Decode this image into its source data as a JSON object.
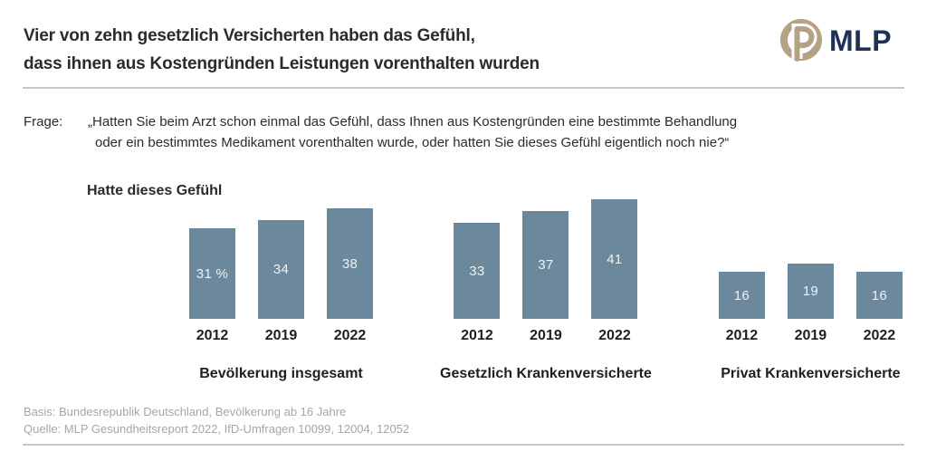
{
  "header": {
    "title_line1": "Vier von zehn gesetzlich Versicherten haben das Gefühl,",
    "title_line2": "dass ihnen aus Kostengründen Leistungen vorenthalten wurden",
    "logo_text": "MLP"
  },
  "question": {
    "label": "Frage:",
    "line1": "„Hatten Sie beim Arzt schon einmal das Gefühl, dass Ihnen aus Kostengründen eine bestimmte Behandlung",
    "line2": "oder ein bestimmtes Medikament vorenthalten wurde, oder hatten Sie dieses Gefühl eigentlich noch nie?“"
  },
  "chart_data": {
    "type": "bar",
    "title": "Hatte dieses Gefühl",
    "unit": "%",
    "ylim": [
      0,
      41
    ],
    "grid": false,
    "legend": "none",
    "categories": [
      "2012",
      "2019",
      "2022"
    ],
    "groups": [
      {
        "label": "Bevölkerung insgesamt",
        "values": [
          31,
          34,
          38
        ],
        "display": [
          "31 %",
          "34",
          "38"
        ]
      },
      {
        "label": "Gesetzlich Krankenversicherte",
        "values": [
          33,
          37,
          41
        ],
        "display": [
          "33",
          "37",
          "41"
        ]
      },
      {
        "label": "Privat Krankenversicherte",
        "values": [
          16,
          19,
          16
        ],
        "display": [
          "16",
          "19",
          "16"
        ]
      }
    ]
  },
  "footer": {
    "basis": "Basis: Bundesrepublik Deutschland, Bevölkerung ab 16 Jahre",
    "quelle": "Quelle: MLP Gesundheitsreport 2022, IfD-Umfragen 10099, 12004, 12052"
  },
  "colors": {
    "bar": "#6b889c",
    "bar_label": "#eef2f4",
    "logo_ring": "#b3a284",
    "logo_navy": "#1d3156",
    "divider": "#c6c6c6",
    "footer_gray": "#a6a6a6",
    "text_dark": "#2b2b2b"
  }
}
